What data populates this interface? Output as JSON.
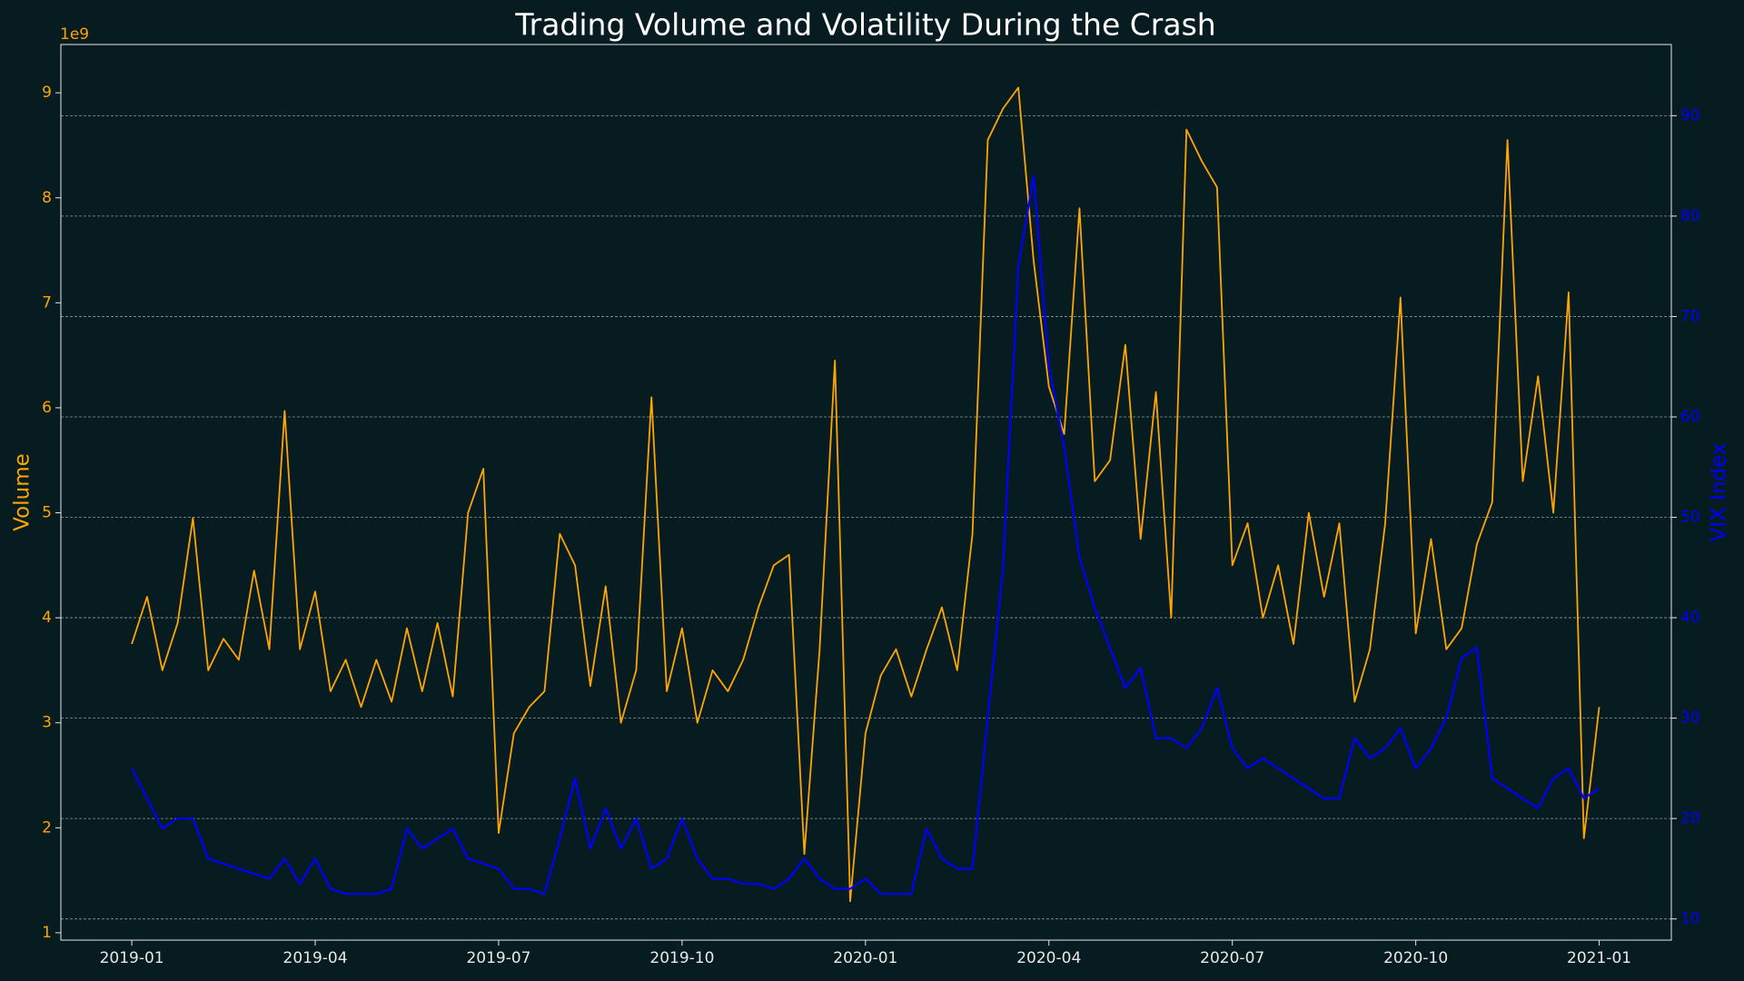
{
  "chart_data": {
    "type": "line",
    "title": "Trading Volume and Volatility During the Crash",
    "y_offset_label": "1e9",
    "x": [
      0,
      0.25,
      0.5,
      0.75,
      1,
      1.25,
      1.5,
      1.75,
      2,
      2.25,
      2.5,
      2.75,
      3,
      3.25,
      3.5,
      3.75,
      4,
      4.25,
      4.5,
      4.75,
      5,
      5.25,
      5.5,
      5.75,
      6,
      6.25,
      6.5,
      6.75,
      7,
      7.25,
      7.5,
      7.75,
      8,
      8.25,
      8.5,
      8.75,
      9,
      9.25,
      9.5,
      9.75,
      10,
      10.25,
      10.5,
      10.75,
      11,
      11.25,
      11.5,
      11.75,
      12,
      12.25,
      12.5,
      12.75,
      13,
      13.25,
      13.5,
      13.75,
      14,
      14.25,
      14.5,
      14.75,
      15,
      15.25,
      15.5,
      15.75,
      16,
      16.25,
      16.5,
      16.75,
      17,
      17.25,
      17.5,
      17.75,
      18,
      18.25,
      18.5,
      18.75,
      19,
      19.25,
      19.5,
      19.75,
      20,
      20.25,
      20.5,
      20.75,
      21,
      21.25,
      21.5,
      21.75,
      22,
      22.25,
      22.5,
      22.75,
      23,
      23.25,
      23.5,
      23.75,
      24
    ],
    "xlim": [
      -1.16,
      25.18
    ],
    "xticks": [
      {
        "value": 0,
        "label": "2019-01"
      },
      {
        "value": 3,
        "label": "2019-04"
      },
      {
        "value": 6,
        "label": "2019-07"
      },
      {
        "value": 9,
        "label": "2019-10"
      },
      {
        "value": 12,
        "label": "2020-01"
      },
      {
        "value": 15,
        "label": "2020-04"
      },
      {
        "value": 18,
        "label": "2020-07"
      },
      {
        "value": 21,
        "label": "2020-10"
      },
      {
        "value": 24,
        "label": "2021-01"
      }
    ],
    "ylim": [
      0.93,
      9.46
    ],
    "yticks": [
      1,
      2,
      3,
      4,
      5,
      6,
      7,
      8,
      9
    ],
    "y2lim": [
      7.89,
      97.09
    ],
    "y2ticks": [
      10,
      20,
      30,
      40,
      50,
      60,
      70,
      80,
      90
    ],
    "grid": true,
    "series": [
      {
        "name": "Volume",
        "color": "#ffa500",
        "values": [
          3.75,
          4.2,
          3.5,
          3.95,
          4.95,
          3.5,
          3.8,
          3.6,
          4.45,
          3.7,
          5.97,
          3.7,
          4.25,
          3.3,
          3.6,
          3.15,
          3.6,
          3.2,
          3.9,
          3.3,
          3.95,
          3.25,
          5.0,
          5.42,
          1.95,
          2.9,
          3.15,
          3.3,
          4.8,
          4.5,
          3.35,
          4.3,
          3.0,
          3.5,
          6.1,
          3.3,
          3.9,
          3.0,
          3.5,
          3.3,
          3.6,
          4.1,
          4.5,
          4.6,
          1.75,
          3.7,
          6.45,
          1.3,
          2.9,
          3.45,
          3.7,
          3.25,
          3.7,
          4.1,
          3.5,
          4.8,
          8.55,
          8.85,
          9.05,
          7.4,
          6.2,
          5.75,
          7.9,
          5.3,
          5.5,
          6.6,
          4.75,
          6.15,
          4.0,
          8.65,
          8.35,
          8.1,
          4.5,
          4.9,
          4.0,
          4.5,
          3.75,
          5.0,
          4.2,
          4.9,
          3.2,
          3.7,
          4.9,
          7.05,
          3.85,
          4.75,
          3.7,
          3.9,
          4.7,
          5.1,
          8.55,
          5.3,
          6.3,
          5.0,
          7.1,
          1.9,
          3.15
        ]
      },
      {
        "name": "VIX Index",
        "color": "#0000ff",
        "axis": "y2",
        "values": [
          25,
          22,
          19,
          20,
          20,
          16,
          15.5,
          15,
          14.5,
          14,
          16,
          13.5,
          16,
          13,
          12.5,
          12.5,
          12.5,
          13,
          19,
          17,
          18,
          19,
          16,
          15.5,
          15,
          13,
          13,
          12.5,
          18,
          24,
          17,
          21,
          17,
          20,
          15,
          16,
          20,
          16,
          14,
          14,
          13.5,
          13.5,
          13,
          14,
          16,
          14,
          13,
          13,
          14,
          12.5,
          12.5,
          12.5,
          19,
          16,
          15,
          15,
          30,
          45,
          75,
          84,
          65,
          57,
          46,
          41,
          37,
          33,
          35,
          28,
          28,
          27,
          29,
          33,
          27,
          25,
          26,
          25,
          24,
          23,
          22,
          22,
          28,
          26,
          27,
          29,
          25,
          27,
          30,
          36,
          37,
          24,
          23,
          22,
          21,
          24,
          25,
          22,
          23
        ]
      }
    ]
  }
}
